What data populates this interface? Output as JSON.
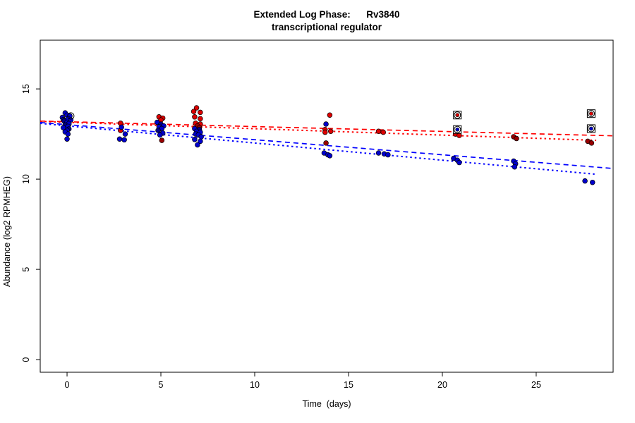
{
  "chart_data": {
    "type": "scatter",
    "title_line1": "Extended Log Phase:      Rv3840",
    "title_line2": "transcriptional regulator",
    "xlabel": "Time  (days)",
    "ylabel": "Abundance  (log2 RPMHEG)",
    "x_ticks": [
      0,
      5,
      10,
      15,
      20,
      25
    ],
    "y_ticks": [
      0,
      5,
      10,
      15
    ],
    "xlim": [
      -1.43,
      29.1
    ],
    "ylim": [
      -0.7,
      17.7
    ],
    "grid": false,
    "legend": "none",
    "colors": {
      "red": "#dd0000",
      "darkred": "#990000",
      "blue": "#0000cd",
      "darkblue": "#00008b",
      "line_red": "#ff0000",
      "line_blue": "#0000ff",
      "marker_outline": "#000000"
    },
    "series": [
      {
        "name": "red-condition",
        "points": [
          [
            0.0,
            13.25,
            "red"
          ],
          [
            0.1,
            13.05,
            "red"
          ],
          [
            -0.1,
            12.95,
            "red"
          ],
          [
            2.85,
            13.1,
            "red"
          ],
          [
            2.85,
            12.7,
            "red"
          ],
          [
            4.9,
            13.45,
            "red"
          ],
          [
            5.1,
            13.38,
            "red"
          ],
          [
            5.0,
            13.28,
            "red"
          ],
          [
            5.05,
            12.15,
            "darkred"
          ],
          [
            6.9,
            13.95,
            "red"
          ],
          [
            6.75,
            13.75,
            "red"
          ],
          [
            7.1,
            13.7,
            "red"
          ],
          [
            6.8,
            13.45,
            "red"
          ],
          [
            7.1,
            13.35,
            "red"
          ],
          [
            6.85,
            13.1,
            "red"
          ],
          [
            7.1,
            13.05,
            "red"
          ],
          [
            6.95,
            12.95,
            "darkred"
          ],
          [
            7.05,
            12.85,
            "darkred"
          ],
          [
            14.0,
            13.55,
            "red"
          ],
          [
            13.75,
            12.75,
            "red"
          ],
          [
            14.05,
            12.65,
            "red"
          ],
          [
            13.75,
            12.6,
            "red"
          ],
          [
            13.8,
            12.0,
            "darkred"
          ],
          [
            16.6,
            12.65,
            "red"
          ],
          [
            16.85,
            12.6,
            "red"
          ],
          [
            20.7,
            12.5,
            "red"
          ],
          [
            20.9,
            12.42,
            "red"
          ],
          [
            23.8,
            12.35,
            "darkred"
          ],
          [
            23.95,
            12.25,
            "darkred"
          ],
          [
            27.75,
            12.1,
            "darkred"
          ],
          [
            27.95,
            12.0,
            "darkred"
          ]
        ]
      },
      {
        "name": "blue-condition",
        "points": [
          [
            -0.1,
            13.67,
            "blue"
          ],
          [
            0.0,
            13.55,
            "blue"
          ],
          [
            0.15,
            13.5,
            "blue"
          ],
          [
            -0.25,
            13.42,
            "blue"
          ],
          [
            0.05,
            13.35,
            "blue"
          ],
          [
            -0.2,
            13.3,
            "darkblue"
          ],
          [
            0.2,
            13.28,
            "blue"
          ],
          [
            -0.15,
            13.22,
            "darkblue"
          ],
          [
            0.0,
            13.15,
            "blue"
          ],
          [
            0.1,
            13.08,
            "blue"
          ],
          [
            -0.1,
            13.0,
            "darkblue"
          ],
          [
            0.05,
            12.92,
            "blue"
          ],
          [
            -0.2,
            12.85,
            "blue"
          ],
          [
            0.1,
            12.78,
            "darkblue"
          ],
          [
            0.0,
            12.7,
            "blue"
          ],
          [
            -0.1,
            12.62,
            "blue"
          ],
          [
            0.05,
            12.5,
            "blue"
          ],
          [
            0.0,
            12.22,
            "blue"
          ],
          [
            2.9,
            12.88,
            "blue"
          ],
          [
            3.1,
            12.5,
            "blue"
          ],
          [
            2.8,
            12.22,
            "blue"
          ],
          [
            3.05,
            12.18,
            "blue"
          ],
          [
            4.8,
            13.15,
            "blue"
          ],
          [
            5.0,
            13.05,
            "darkblue"
          ],
          [
            5.15,
            12.95,
            "blue"
          ],
          [
            4.9,
            12.9,
            "blue"
          ],
          [
            5.05,
            12.8,
            "blue"
          ],
          [
            4.85,
            12.7,
            "darkblue"
          ],
          [
            5.1,
            12.55,
            "blue"
          ],
          [
            4.95,
            12.45,
            "blue"
          ],
          [
            6.8,
            12.8,
            "blue"
          ],
          [
            7.05,
            12.75,
            "darkblue"
          ],
          [
            6.9,
            12.65,
            "blue"
          ],
          [
            7.1,
            12.6,
            "blue"
          ],
          [
            6.85,
            12.5,
            "blue"
          ],
          [
            7.0,
            12.45,
            "blue"
          ],
          [
            7.15,
            12.35,
            "blue"
          ],
          [
            6.8,
            12.2,
            "blue"
          ],
          [
            7.1,
            12.1,
            "blue"
          ],
          [
            6.95,
            11.9,
            "blue"
          ],
          [
            13.8,
            13.05,
            "blue"
          ],
          [
            13.7,
            11.45,
            "blue"
          ],
          [
            13.9,
            11.35,
            "blue"
          ],
          [
            14.0,
            11.3,
            "blue"
          ],
          [
            16.6,
            11.45,
            "blue"
          ],
          [
            16.9,
            11.4,
            "blue"
          ],
          [
            17.1,
            11.35,
            "blue"
          ],
          [
            20.6,
            11.15,
            "blue"
          ],
          [
            20.8,
            11.05,
            "blue"
          ],
          [
            20.9,
            10.92,
            "blue"
          ],
          [
            23.8,
            11.0,
            "blue"
          ],
          [
            23.9,
            10.85,
            "blue"
          ],
          [
            23.85,
            10.68,
            "blue"
          ],
          [
            27.6,
            9.9,
            "blue"
          ],
          [
            28.0,
            9.82,
            "blue"
          ]
        ]
      }
    ],
    "fit_lines": [
      {
        "name": "red-fit-dashed",
        "color": "line_red",
        "style": "dash",
        "x1": -1.43,
        "v1": 13.22,
        "x2": 29.1,
        "v2": 12.4
      },
      {
        "name": "red-fit-dotted",
        "color": "line_red",
        "style": "dot",
        "x1": -1.43,
        "v1": 13.2,
        "x2": 28.2,
        "v2": 12.15
      },
      {
        "name": "blue-fit-dashed",
        "color": "line_blue",
        "style": "dash",
        "x1": -1.43,
        "v1": 13.14,
        "x2": 29.1,
        "v2": 10.59
      },
      {
        "name": "blue-fit-dotted",
        "color": "line_blue",
        "style": "dot",
        "x1": -1.43,
        "v1": 13.09,
        "x2": 28.2,
        "v2": 10.27
      }
    ],
    "flagged_points": [
      {
        "d": 20.8,
        "v": 13.55,
        "c": "red"
      },
      {
        "d": 20.8,
        "v": 12.75,
        "c": "blue"
      },
      {
        "d": 27.93,
        "v": 13.63,
        "c": "red"
      },
      {
        "d": 27.93,
        "v": 12.8,
        "c": "blue"
      }
    ],
    "circled_points": [
      {
        "d": 0.2,
        "v": 13.5
      }
    ]
  }
}
